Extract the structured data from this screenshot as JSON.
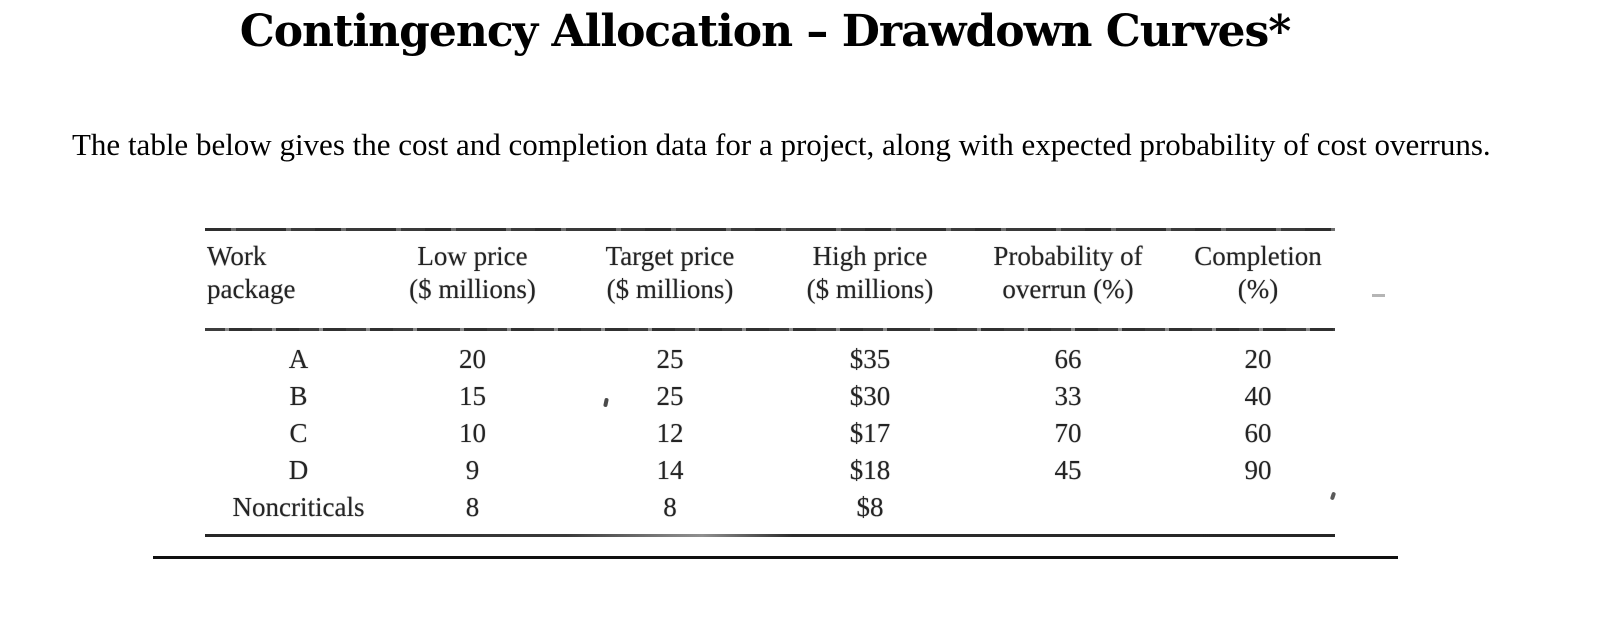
{
  "page": {
    "title": "Contingency Allocation – Drawdown Curves*",
    "intro": "The table below gives the cost and completion data for a project, along with expected probability of cost overruns."
  },
  "table": {
    "headers": [
      {
        "l1": "Work",
        "l2": "package"
      },
      {
        "l1": "Low price",
        "l2": "($ millions)"
      },
      {
        "l1": "Target price",
        "l2": "($ millions)"
      },
      {
        "l1": "High price",
        "l2": "($ millions)"
      },
      {
        "l1": "Probability of",
        "l2": "overrun (%)"
      },
      {
        "l1": "Completion",
        "l2": "(%)"
      }
    ],
    "rows": [
      {
        "package": "A",
        "low": "20",
        "target": "25",
        "high": "$35",
        "overrun": "66",
        "completion": "20"
      },
      {
        "package": "B",
        "low": "15",
        "target": "25",
        "high": "$30",
        "overrun": "33",
        "completion": "40"
      },
      {
        "package": "C",
        "low": "10",
        "target": "12",
        "high": "$17",
        "overrun": "70",
        "completion": "60"
      },
      {
        "package": "D",
        "low": "9",
        "target": "14",
        "high": "$18",
        "overrun": "45",
        "completion": "90"
      },
      {
        "package": "Noncriticals",
        "low": "8",
        "target": "8",
        "high": "$8",
        "overrun": "",
        "completion": ""
      }
    ]
  }
}
